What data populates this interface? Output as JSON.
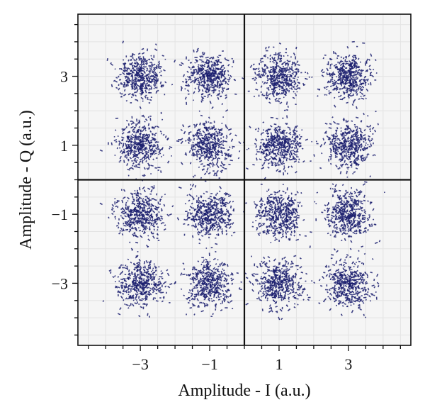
{
  "chart_data": {
    "type": "scatter",
    "title": "",
    "xlabel": "Amplitude - I (a.u.)",
    "ylabel": "Amplitude - Q (a.u.)",
    "xlim": [
      -4.8,
      4.8
    ],
    "ylim": [
      -4.8,
      4.8
    ],
    "x_ticks": [
      -3,
      -1,
      1,
      3
    ],
    "y_ticks": [
      3,
      1,
      -1,
      -3
    ],
    "x_tick_labels": [
      "−3",
      "−1",
      "1",
      "3"
    ],
    "y_tick_labels": [
      "3",
      "1",
      "−1",
      "−3"
    ],
    "grid": true,
    "axis_lines_at_origin": true,
    "constellation": "16-QAM",
    "cluster_centers": [
      [
        -3,
        3
      ],
      [
        -1,
        3
      ],
      [
        1,
        3
      ],
      [
        3,
        3
      ],
      [
        -3,
        1
      ],
      [
        -1,
        1
      ],
      [
        1,
        1
      ],
      [
        3,
        1
      ],
      [
        -3,
        -1
      ],
      [
        -1,
        -1
      ],
      [
        1,
        -1
      ],
      [
        3,
        -1
      ],
      [
        -3,
        -3
      ],
      [
        -1,
        -3
      ],
      [
        1,
        -3
      ],
      [
        3,
        -3
      ]
    ],
    "noise_std": 0.33,
    "points_per_cluster": 420,
    "marker_color": "#1b1f6e"
  }
}
